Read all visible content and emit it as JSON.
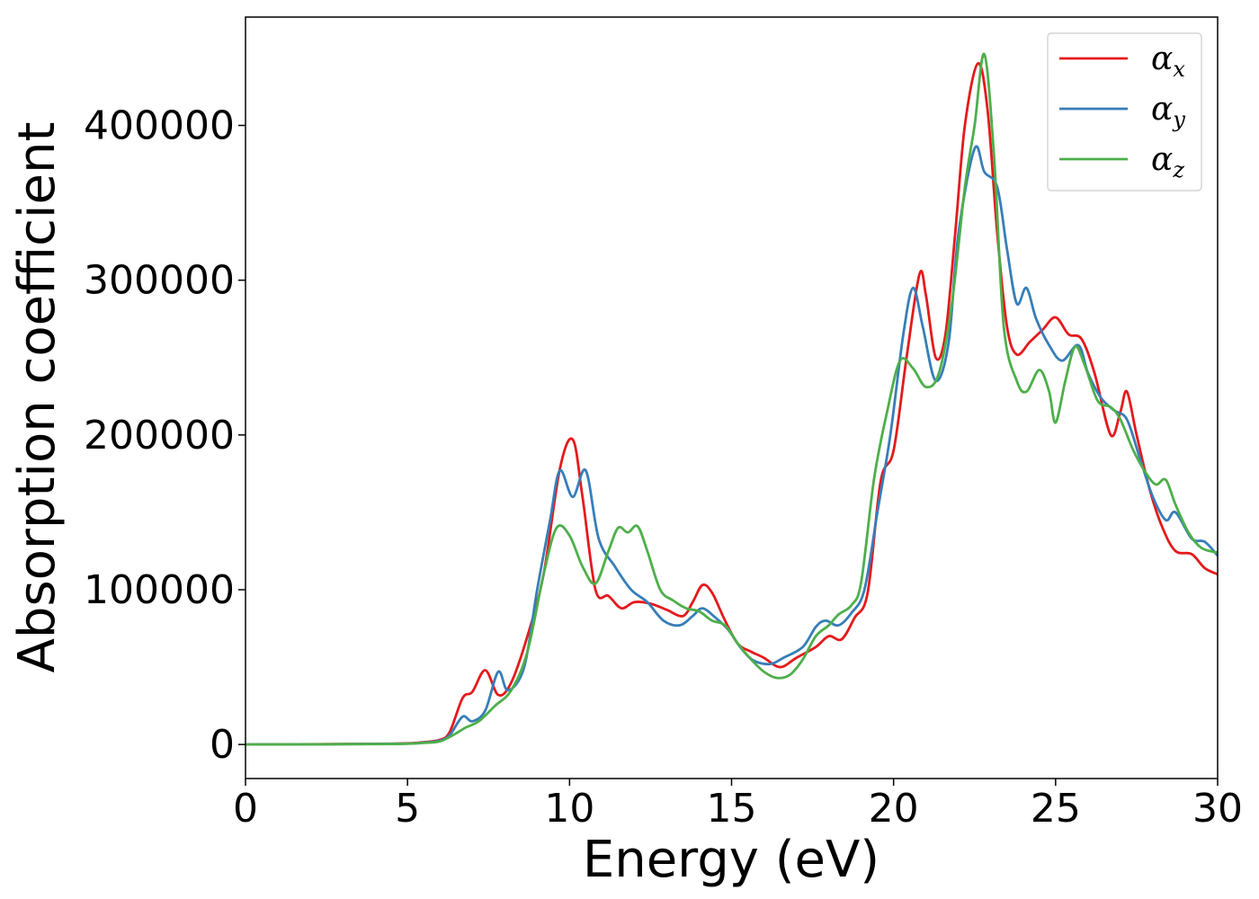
{
  "chart_data": {
    "type": "line",
    "title": "",
    "xlabel": "Energy (eV)",
    "ylabel": "Absorption coefficient",
    "xlim": [
      0,
      30
    ],
    "ylim": [
      -22000,
      470000
    ],
    "xticks": [
      0,
      5,
      10,
      15,
      20,
      25,
      30
    ],
    "yticks": [
      0,
      100000,
      200000,
      300000,
      400000
    ],
    "grid": false,
    "legend_position": "top-right",
    "series": [
      {
        "name": "α",
        "subscript": "x",
        "color": "#e41a1c",
        "points": [
          [
            0,
            0
          ],
          [
            4.5,
            500
          ],
          [
            5.5,
            1500
          ],
          [
            6.0,
            3000
          ],
          [
            6.3,
            8000
          ],
          [
            6.7,
            30000
          ],
          [
            7.0,
            34000
          ],
          [
            7.4,
            48000
          ],
          [
            7.8,
            32000
          ],
          [
            8.2,
            40000
          ],
          [
            8.7,
            70000
          ],
          [
            9.2,
            110000
          ],
          [
            9.7,
            178000
          ],
          [
            10.1,
            197000
          ],
          [
            10.4,
            160000
          ],
          [
            10.8,
            100000
          ],
          [
            11.2,
            96000
          ],
          [
            11.6,
            88000
          ],
          [
            12.0,
            92000
          ],
          [
            12.5,
            91000
          ],
          [
            13.0,
            87000
          ],
          [
            13.5,
            83000
          ],
          [
            13.8,
            92000
          ],
          [
            14.1,
            103000
          ],
          [
            14.4,
            98000
          ],
          [
            14.8,
            80000
          ],
          [
            15.2,
            65000
          ],
          [
            15.6,
            60000
          ],
          [
            16.0,
            56000
          ],
          [
            16.5,
            50000
          ],
          [
            17.0,
            56000
          ],
          [
            17.6,
            63000
          ],
          [
            18.0,
            70000
          ],
          [
            18.4,
            68000
          ],
          [
            18.8,
            82000
          ],
          [
            19.2,
            98000
          ],
          [
            19.6,
            170000
          ],
          [
            20.0,
            190000
          ],
          [
            20.4,
            250000
          ],
          [
            20.8,
            304000
          ],
          [
            21.0,
            290000
          ],
          [
            21.3,
            250000
          ],
          [
            21.6,
            265000
          ],
          [
            21.9,
            330000
          ],
          [
            22.2,
            400000
          ],
          [
            22.6,
            440000
          ],
          [
            22.9,
            410000
          ],
          [
            23.2,
            330000
          ],
          [
            23.5,
            270000
          ],
          [
            23.8,
            252000
          ],
          [
            24.2,
            260000
          ],
          [
            24.6,
            268000
          ],
          [
            25.0,
            276000
          ],
          [
            25.4,
            265000
          ],
          [
            25.8,
            262000
          ],
          [
            26.2,
            240000
          ],
          [
            26.7,
            200000
          ],
          [
            27.0,
            215000
          ],
          [
            27.2,
            228000
          ],
          [
            27.5,
            200000
          ],
          [
            27.9,
            165000
          ],
          [
            28.3,
            140000
          ],
          [
            28.7,
            125000
          ],
          [
            29.2,
            123000
          ],
          [
            29.6,
            114000
          ],
          [
            30.0,
            110000
          ]
        ]
      },
      {
        "name": "α",
        "subscript": "y",
        "color": "#377eb8",
        "points": [
          [
            0,
            0
          ],
          [
            4.5,
            400
          ],
          [
            5.5,
            1200
          ],
          [
            6.0,
            2500
          ],
          [
            6.3,
            6000
          ],
          [
            6.7,
            18000
          ],
          [
            7.0,
            15000
          ],
          [
            7.4,
            22000
          ],
          [
            7.8,
            47000
          ],
          [
            8.1,
            35000
          ],
          [
            8.6,
            50000
          ],
          [
            9.0,
            100000
          ],
          [
            9.4,
            145000
          ],
          [
            9.7,
            177000
          ],
          [
            10.1,
            160000
          ],
          [
            10.5,
            177000
          ],
          [
            10.9,
            133000
          ],
          [
            11.4,
            115000
          ],
          [
            11.9,
            100000
          ],
          [
            12.4,
            92000
          ],
          [
            12.9,
            80000
          ],
          [
            13.4,
            77000
          ],
          [
            13.8,
            83000
          ],
          [
            14.1,
            88000
          ],
          [
            14.5,
            82000
          ],
          [
            14.9,
            74000
          ],
          [
            15.3,
            62000
          ],
          [
            15.7,
            54000
          ],
          [
            16.2,
            52000
          ],
          [
            16.6,
            56000
          ],
          [
            17.2,
            63000
          ],
          [
            17.6,
            76000
          ],
          [
            17.9,
            80000
          ],
          [
            18.3,
            77000
          ],
          [
            18.7,
            85000
          ],
          [
            19.1,
            100000
          ],
          [
            19.5,
            150000
          ],
          [
            19.9,
            200000
          ],
          [
            20.3,
            265000
          ],
          [
            20.6,
            295000
          ],
          [
            20.9,
            270000
          ],
          [
            21.3,
            235000
          ],
          [
            21.7,
            260000
          ],
          [
            22.0,
            330000
          ],
          [
            22.5,
            385000
          ],
          [
            22.8,
            370000
          ],
          [
            23.2,
            360000
          ],
          [
            23.5,
            320000
          ],
          [
            23.8,
            285000
          ],
          [
            24.1,
            295000
          ],
          [
            24.4,
            275000
          ],
          [
            24.8,
            258000
          ],
          [
            25.2,
            248000
          ],
          [
            25.7,
            258000
          ],
          [
            26.0,
            240000
          ],
          [
            26.4,
            224000
          ],
          [
            26.8,
            216000
          ],
          [
            27.2,
            210000
          ],
          [
            27.6,
            185000
          ],
          [
            28.0,
            160000
          ],
          [
            28.4,
            145000
          ],
          [
            28.7,
            150000
          ],
          [
            29.2,
            133000
          ],
          [
            29.6,
            131000
          ],
          [
            30.0,
            122000
          ]
        ]
      },
      {
        "name": "α",
        "subscript": "z",
        "color": "#4daf4a",
        "points": [
          [
            0,
            0
          ],
          [
            4.5,
            300
          ],
          [
            5.5,
            1000
          ],
          [
            6.0,
            2000
          ],
          [
            6.4,
            6000
          ],
          [
            6.8,
            11000
          ],
          [
            7.2,
            15000
          ],
          [
            7.7,
            25000
          ],
          [
            8.2,
            35000
          ],
          [
            8.7,
            60000
          ],
          [
            9.2,
            110000
          ],
          [
            9.6,
            140000
          ],
          [
            10.0,
            135000
          ],
          [
            10.4,
            115000
          ],
          [
            10.8,
            104000
          ],
          [
            11.2,
            125000
          ],
          [
            11.5,
            140000
          ],
          [
            11.8,
            137000
          ],
          [
            12.1,
            141000
          ],
          [
            12.4,
            125000
          ],
          [
            12.8,
            100000
          ],
          [
            13.2,
            93000
          ],
          [
            13.6,
            88000
          ],
          [
            14.0,
            86000
          ],
          [
            14.4,
            80000
          ],
          [
            14.8,
            77000
          ],
          [
            15.2,
            65000
          ],
          [
            15.6,
            55000
          ],
          [
            16.0,
            47000
          ],
          [
            16.4,
            43000
          ],
          [
            16.8,
            45000
          ],
          [
            17.2,
            55000
          ],
          [
            17.6,
            70000
          ],
          [
            18.0,
            77000
          ],
          [
            18.3,
            84000
          ],
          [
            18.7,
            90000
          ],
          [
            19.0,
            105000
          ],
          [
            19.4,
            172000
          ],
          [
            19.8,
            215000
          ],
          [
            20.2,
            248000
          ],
          [
            20.6,
            243000
          ],
          [
            21.0,
            231000
          ],
          [
            21.4,
            240000
          ],
          [
            21.8,
            285000
          ],
          [
            22.2,
            360000
          ],
          [
            22.5,
            400000
          ],
          [
            22.8,
            446000
          ],
          [
            23.1,
            380000
          ],
          [
            23.4,
            270000
          ],
          [
            23.8,
            235000
          ],
          [
            24.1,
            228000
          ],
          [
            24.5,
            242000
          ],
          [
            24.8,
            228000
          ],
          [
            25.0,
            208000
          ],
          [
            25.3,
            235000
          ],
          [
            25.6,
            257000
          ],
          [
            25.9,
            245000
          ],
          [
            26.3,
            222000
          ],
          [
            26.7,
            218000
          ],
          [
            27.0,
            210000
          ],
          [
            27.4,
            190000
          ],
          [
            27.8,
            175000
          ],
          [
            28.1,
            168000
          ],
          [
            28.4,
            171000
          ],
          [
            28.7,
            155000
          ],
          [
            29.1,
            137000
          ],
          [
            29.5,
            127000
          ],
          [
            30.0,
            124000
          ]
        ]
      }
    ]
  }
}
